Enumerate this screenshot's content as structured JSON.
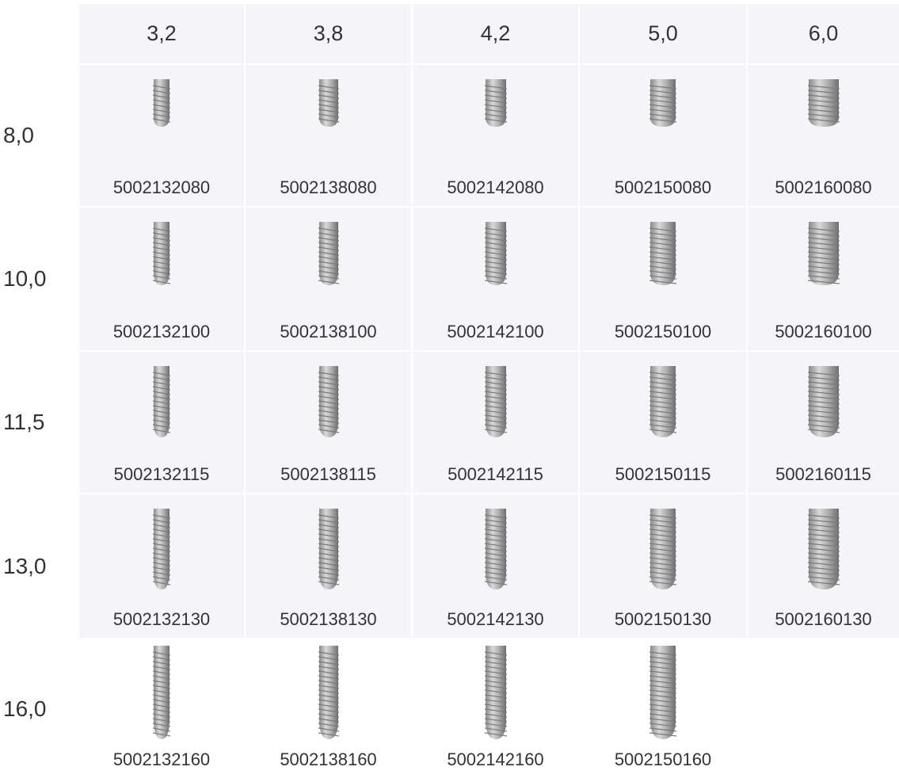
{
  "table": {
    "header": [
      "3,2",
      "3,8",
      "4,2",
      "5,0",
      "6,0"
    ],
    "rows": [
      {
        "label": "8,0",
        "codes": [
          "5002132080",
          "5002138080",
          "5002142080",
          "5002150080",
          "5002160080"
        ]
      },
      {
        "label": "10,0",
        "codes": [
          "5002132100",
          "5002138100",
          "5002142100",
          "5002150100",
          "5002160100"
        ]
      },
      {
        "label": "11,5",
        "codes": [
          "5002132115",
          "5002138115",
          "5002142115",
          "5002150115",
          "5002160115"
        ]
      },
      {
        "label": "13,0",
        "codes": [
          "5002132130",
          "5002138130",
          "5002142130",
          "5002150130",
          "5002160130"
        ]
      },
      {
        "label": "16,0",
        "codes": [
          "5002132160",
          "5002138160",
          "5002142160",
          "5002150160"
        ]
      }
    ]
  }
}
